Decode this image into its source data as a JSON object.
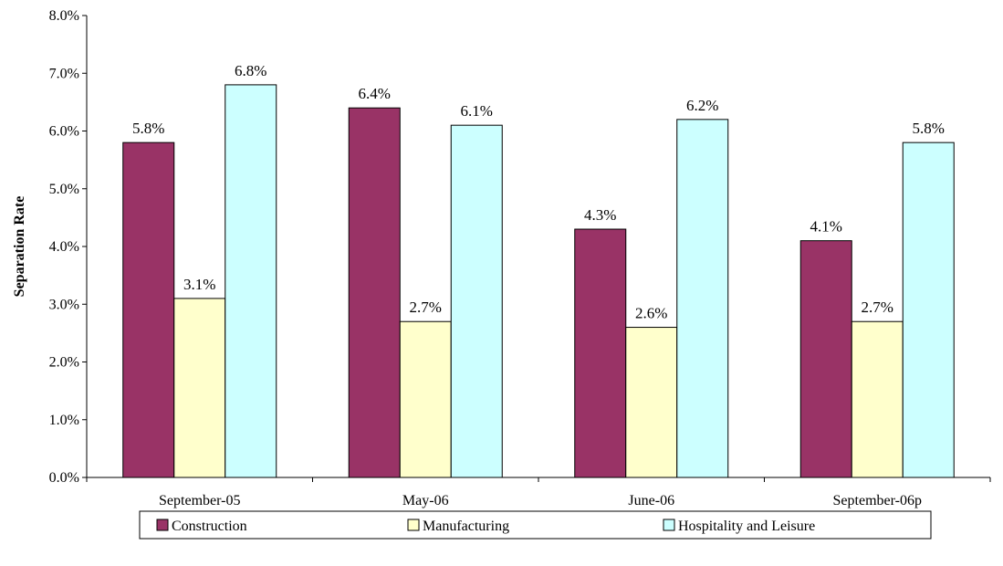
{
  "chart_data": {
    "type": "bar",
    "title": "",
    "xlabel": "",
    "ylabel": "Separation Rate",
    "ylim": [
      0,
      8.0
    ],
    "yticks": [
      "0.0%",
      "1.0%",
      "2.0%",
      "3.0%",
      "4.0%",
      "5.0%",
      "6.0%",
      "7.0%",
      "8.0%"
    ],
    "grid": false,
    "legend_position": "bottom",
    "categories": [
      "September-05",
      "May-06",
      "June-06",
      "September-06p"
    ],
    "series": [
      {
        "name": "Construction",
        "color": "#993366",
        "values": [
          5.8,
          6.4,
          4.3,
          4.1
        ],
        "labels": [
          "5.8%",
          "6.4%",
          "4.3%",
          "4.1%"
        ]
      },
      {
        "name": "Manufacturing",
        "color": "#FFFFCC",
        "values": [
          3.1,
          2.7,
          2.6,
          2.7
        ],
        "labels": [
          "3.1%",
          "2.7%",
          "2.6%",
          "2.7%"
        ]
      },
      {
        "name": "Hospitality and Leisure",
        "color": "#CCFFFF",
        "values": [
          6.8,
          6.1,
          6.2,
          5.8
        ],
        "labels": [
          "6.8%",
          "6.1%",
          "6.2%",
          "5.8%"
        ]
      }
    ]
  }
}
